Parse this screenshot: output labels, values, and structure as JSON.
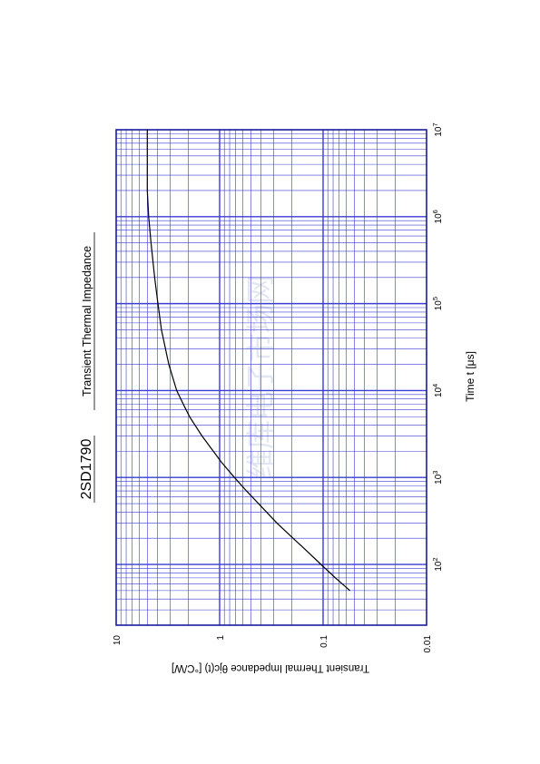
{
  "header": {
    "part_number": "2SD1790",
    "title": "Transient Thermal Impedance"
  },
  "watermark": "维库电子市场网",
  "colors": {
    "grid": "#3b3bd6",
    "axis": "#1a1aa0",
    "curve": "#000000"
  },
  "chart_data": {
    "type": "line",
    "orientation": "rotated-90-ccw",
    "xscale": "log",
    "yscale": "log",
    "xlabel": "Time t [μs]",
    "ylabel": "Transient Thermal Impedance θjc(t) [°C/W]",
    "xlim": [
      20,
      10000000
    ],
    "ylim": [
      0.01,
      10
    ],
    "grid": true,
    "x_ticks": [
      {
        "value": 100,
        "base": "10",
        "exp": "2"
      },
      {
        "value": 1000,
        "base": "10",
        "exp": "3"
      },
      {
        "value": 10000,
        "base": "10",
        "exp": "4"
      },
      {
        "value": 100000,
        "base": "10",
        "exp": "5"
      },
      {
        "value": 1000000,
        "base": "10",
        "exp": "6"
      },
      {
        "value": 10000000,
        "base": "10",
        "exp": "7"
      }
    ],
    "y_ticks": [
      {
        "value": 0.01,
        "label": "0.01"
      },
      {
        "value": 0.1,
        "label": "0.1"
      },
      {
        "value": 1,
        "label": "1"
      },
      {
        "value": 10,
        "label": "10"
      }
    ],
    "series": [
      {
        "x": [
          50,
          70,
          100,
          150,
          200,
          300,
          500,
          700,
          1000,
          1500,
          2000,
          3000,
          5000,
          7000,
          10000,
          20000,
          50000,
          100000,
          200000,
          500000,
          1000000,
          2000000,
          5000000,
          10000000
        ],
        "y": [
          0.055,
          0.076,
          0.105,
          0.15,
          0.195,
          0.28,
          0.42,
          0.55,
          0.72,
          0.96,
          1.15,
          1.48,
          1.95,
          2.25,
          2.6,
          3.1,
          3.65,
          3.95,
          4.25,
          4.6,
          4.85,
          5.0,
          5.0,
          5.0
        ]
      }
    ]
  }
}
